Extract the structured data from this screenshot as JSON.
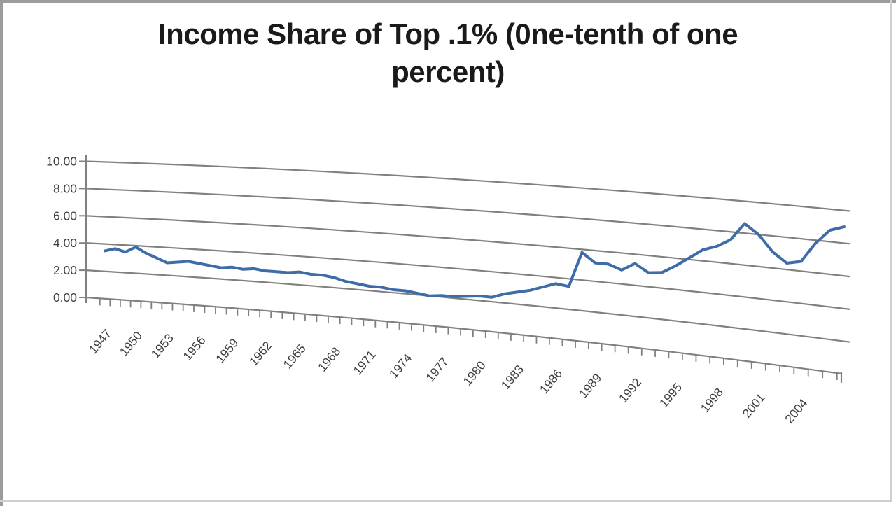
{
  "chart_data": {
    "type": "line",
    "title": "Income Share of Top .1% (0ne-tenth of one percent)",
    "title_line1": "Income Share of Top .1% (0ne-tenth of one",
    "title_line2": "percent)",
    "xlabel": "",
    "ylabel": "",
    "ylim": [
      0,
      10
    ],
    "grid": true,
    "perspective": "3d-skewed",
    "legend_position": "none",
    "y_tick_labels": [
      "0.00",
      "2.00",
      "4.00",
      "6.00",
      "8.00",
      "10.00"
    ],
    "y_tick_values": [
      0,
      2,
      4,
      6,
      8,
      10
    ],
    "x_tick_labels": [
      "1947",
      "1950",
      "1953",
      "1956",
      "1959",
      "1962",
      "1965",
      "1968",
      "1971",
      "1974",
      "1977",
      "1980",
      "1983",
      "1986",
      "1989",
      "1992",
      "1995",
      "1998",
      "2001",
      "2004"
    ],
    "x": [
      1947,
      1948,
      1949,
      1950,
      1951,
      1952,
      1953,
      1954,
      1955,
      1956,
      1957,
      1958,
      1959,
      1960,
      1961,
      1962,
      1963,
      1964,
      1965,
      1966,
      1967,
      1968,
      1969,
      1970,
      1971,
      1972,
      1973,
      1974,
      1975,
      1976,
      1977,
      1978,
      1979,
      1980,
      1981,
      1982,
      1983,
      1984,
      1985,
      1986,
      1987,
      1988,
      1989,
      1990,
      1991,
      1992,
      1993,
      1994,
      1995,
      1996,
      1997,
      1998,
      1999,
      2000,
      2001,
      2002,
      2003,
      2004,
      2005,
      2006,
      2007
    ],
    "series": [
      {
        "name": "Income share of top .1%",
        "values": [
          3.5,
          3.7,
          3.5,
          3.9,
          3.5,
          3.2,
          2.9,
          3.0,
          3.1,
          3.0,
          2.9,
          2.8,
          2.9,
          2.8,
          2.9,
          2.8,
          2.8,
          2.8,
          2.9,
          2.8,
          2.8,
          2.7,
          2.5,
          2.4,
          2.3,
          2.3,
          2.2,
          2.2,
          2.1,
          2.0,
          2.1,
          2.1,
          2.2,
          2.3,
          2.3,
          2.6,
          2.8,
          3.0,
          3.3,
          3.6,
          3.5,
          5.8,
          5.2,
          5.2,
          4.9,
          5.4,
          4.9,
          5.0,
          5.5,
          6.1,
          6.7,
          7.0,
          7.5,
          8.6,
          8.0,
          7.0,
          6.4,
          6.6,
          7.8,
          8.7,
          9.0
        ]
      }
    ],
    "style": {
      "line_color": "#3E6CA8",
      "grid_color": "#808080",
      "tick_label_color": "#3f3f3f",
      "title_color": "#1a1a1a",
      "background": "#ffffff",
      "frame_dark": "#9c9c9c",
      "frame_light": "#cfcfcf"
    }
  }
}
